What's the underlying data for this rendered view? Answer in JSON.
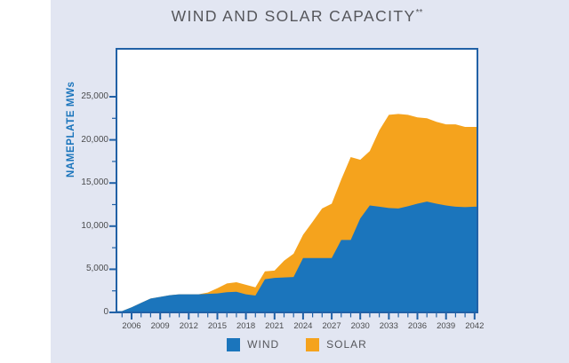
{
  "title": {
    "text": "WIND AND SOLAR CAPACITY",
    "superscript": "**"
  },
  "colors": {
    "wind": "#1B75BC",
    "solar": "#F5A31D",
    "axis": "#2161A6",
    "panel_bg": "#E2E6F2",
    "plot_bg": "#FFFFFF",
    "title_text": "#55565B",
    "tick_text": "#4A4B4D",
    "y_axis_title_text": "#1B75BC"
  },
  "y_axis": {
    "title": "NAMEPLATE MWs",
    "tick_labels": [
      "0",
      "5,000",
      "10,000",
      "15,000",
      "20,000",
      "25,000"
    ],
    "tick_values": [
      0,
      5000,
      10000,
      15000,
      20000,
      25000
    ],
    "minor_step": 2500,
    "max": 25000
  },
  "x_axis": {
    "labeled_years": [
      2006,
      2009,
      2012,
      2015,
      2018,
      2021,
      2024,
      2027,
      2030,
      2033,
      2036,
      2039,
      2042
    ],
    "minor_step_years": 1,
    "start_year": 2005,
    "end_year": 2042
  },
  "legend": {
    "items": [
      {
        "label": "WIND",
        "color_key": "wind"
      },
      {
        "label": "SOLAR",
        "color_key": "solar"
      }
    ]
  },
  "chart_data": {
    "type": "area",
    "stacked": true,
    "title": "WIND AND SOLAR CAPACITY**",
    "ylabel": "NAMEPLATE MWs",
    "ylim": [
      0,
      25000
    ],
    "xlim": [
      2005,
      2042
    ],
    "grid": false,
    "legend_position": "bottom",
    "x": [
      2005,
      2006,
      2007,
      2008,
      2009,
      2010,
      2011,
      2012,
      2013,
      2014,
      2015,
      2016,
      2017,
      2018,
      2019,
      2020,
      2021,
      2022,
      2023,
      2024,
      2025,
      2026,
      2027,
      2028,
      2029,
      2030,
      2031,
      2032,
      2033,
      2034,
      2035,
      2036,
      2037,
      2038,
      2039,
      2040,
      2041,
      2042
    ],
    "series": [
      {
        "name": "WIND",
        "values": [
          150,
          600,
          1100,
          1600,
          1800,
          2000,
          2100,
          2100,
          2100,
          2150,
          2200,
          2350,
          2400,
          2100,
          1950,
          3850,
          4000,
          4050,
          4100,
          6300,
          6300,
          6300,
          6300,
          8400,
          8400,
          10900,
          12400,
          12250,
          12100,
          12050,
          12300,
          12600,
          12850,
          12600,
          12400,
          12250,
          12200,
          12250
        ]
      },
      {
        "name": "SOLAR",
        "values": [
          0,
          0,
          0,
          0,
          0,
          0,
          0,
          0,
          0,
          150,
          600,
          1000,
          1100,
          1100,
          950,
          900,
          850,
          1950,
          2700,
          2700,
          4200,
          5750,
          6300,
          7000,
          9600,
          6800,
          6300,
          8850,
          10800,
          10950,
          10600,
          10000,
          9650,
          9500,
          9400,
          9550,
          9300,
          9250
        ]
      }
    ]
  }
}
